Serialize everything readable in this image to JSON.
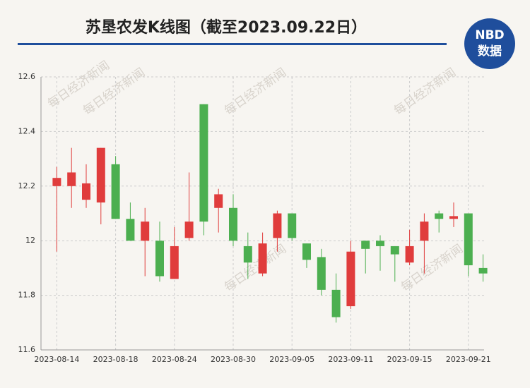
{
  "chart_data": {
    "type": "candlestick",
    "title": "苏垦农发K线图（截至2023.09.22日）",
    "logo": {
      "top": "NBD",
      "bottom": "数据"
    },
    "watermark": "每日经济新闻",
    "categories": [
      "2023-08-14",
      null,
      null,
      null,
      "2023-08-18",
      null,
      null,
      null,
      "2023-08-24",
      null,
      null,
      null,
      "2023-08-30",
      null,
      null,
      null,
      "2023-09-05",
      null,
      null,
      null,
      "2023-09-11",
      null,
      null,
      null,
      "2023-09-15",
      null,
      null,
      null,
      "2023-09-21",
      null
    ],
    "open": [
      12.2,
      12.2,
      12.15,
      12.14,
      12.28,
      12.08,
      12.0,
      12.0,
      11.86,
      12.01,
      12.5,
      12.12,
      12.12,
      11.98,
      11.88,
      12.01,
      12.1,
      11.99,
      11.94,
      11.82,
      11.76,
      12.0,
      12.0,
      11.98,
      11.92,
      12.0,
      12.1,
      12.08,
      12.1,
      11.9
    ],
    "high": [
      12.27,
      12.34,
      12.28,
      12.34,
      12.31,
      12.14,
      12.12,
      12.07,
      12.05,
      12.25,
      12.5,
      12.19,
      12.17,
      12.03,
      12.03,
      12.11,
      12.1,
      11.99,
      11.97,
      11.88,
      12.0,
      12.0,
      12.02,
      11.98,
      12.04,
      12.1,
      12.11,
      12.14,
      12.1,
      11.95
    ],
    "low": [
      11.96,
      12.12,
      12.12,
      12.06,
      12.08,
      12.0,
      11.87,
      11.85,
      11.86,
      12.0,
      12.02,
      12.03,
      11.98,
      11.86,
      11.87,
      11.96,
      12.0,
      11.9,
      11.8,
      11.7,
      11.75,
      11.88,
      11.89,
      11.85,
      11.91,
      11.88,
      12.03,
      12.05,
      11.87,
      11.85
    ],
    "close": [
      12.23,
      12.25,
      12.21,
      12.34,
      12.08,
      12.0,
      12.07,
      11.87,
      11.98,
      12.07,
      12.07,
      12.17,
      12.0,
      11.92,
      11.99,
      12.1,
      12.01,
      11.93,
      11.82,
      11.72,
      11.96,
      11.97,
      11.98,
      11.95,
      11.98,
      12.07,
      12.08,
      12.09,
      11.91,
      11.88
    ],
    "up_color": "#e03c3c",
    "down_color": "#4caf50",
    "ylim": [
      11.6,
      12.6
    ],
    "yticks": [
      11.6,
      11.8,
      12,
      12.2,
      12.4,
      12.6
    ],
    "grid": true
  }
}
